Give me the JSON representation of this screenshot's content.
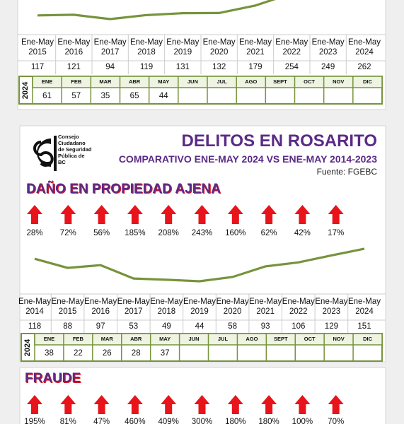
{
  "chart_data": [
    {
      "type": "line",
      "color": "#77933c",
      "categories": [
        "Ene-May 2015",
        "Ene-May 2016",
        "Ene-May 2017",
        "Ene-May 2018",
        "Ene-May 2019",
        "Ene-May 2020",
        "Ene-May 2021",
        "Ene-May 2022",
        "Ene-May 2023",
        "Ene-May 2024"
      ],
      "values": [
        117,
        121,
        94,
        119,
        131,
        132,
        179,
        254,
        249,
        262
      ],
      "monthly": {
        "year": "2024",
        "months": [
          "ENE",
          "FEB",
          "MAR",
          "ABR",
          "MAY",
          "JUN",
          "JUL",
          "AGO",
          "SEPT",
          "OCT",
          "NOV",
          "DIC"
        ],
        "values": [
          61,
          57,
          35,
          65,
          44,
          null,
          null,
          null,
          null,
          null,
          null,
          null
        ]
      }
    },
    {
      "type": "line",
      "color": "#77933c",
      "organization": "Consejo Ciudadano de Seguridad Pública de BC",
      "title": "DELITOS EN ROSARITO",
      "subtitle": "COMPARATIVO ENE-MAY 2024 VS ENE-MAY 2014-2023",
      "source": "Fuente: FGEBC",
      "section": "DAÑO EN PROPIEDAD AJENA",
      "pct_change": {
        "values": [
          28,
          72,
          56,
          185,
          208,
          243,
          160,
          62,
          42,
          17
        ],
        "value_labels": [
          "28%",
          "72%",
          "56%",
          "185%",
          "208%",
          "243%",
          "160%",
          "62%",
          "42%",
          "17%"
        ]
      },
      "categories": [
        "Ene-May 2014",
        "Ene-May 2015",
        "Ene-May 2016",
        "Ene-May 2017",
        "Ene-May 2018",
        "Ene-May 2019",
        "Ene-May 2020",
        "Ene-May 2021",
        "Ene-May 2022",
        "Ene-May 2023",
        "Ene-May 2024"
      ],
      "values": [
        118,
        88,
        97,
        53,
        49,
        44,
        58,
        93,
        106,
        129,
        151
      ],
      "monthly": {
        "year": "2024",
        "months": [
          "ENE",
          "FEB",
          "MAR",
          "ABR",
          "MAY",
          "JUN",
          "JUL",
          "AGO",
          "SEPT",
          "OCT",
          "NOV",
          "DIC"
        ],
        "values": [
          38,
          22,
          26,
          28,
          37,
          null,
          null,
          null,
          null,
          null,
          null,
          null
        ]
      }
    }
  ],
  "fraude": {
    "section": "FRAUDE",
    "pct_change": {
      "values": [
        195,
        81,
        47,
        460,
        409,
        300,
        180,
        180,
        100,
        70
      ],
      "value_labels": [
        "195%",
        "81%",
        "47%",
        "460%",
        "409%",
        "300%",
        "180%",
        "180%",
        "100%",
        "70%"
      ]
    }
  }
}
